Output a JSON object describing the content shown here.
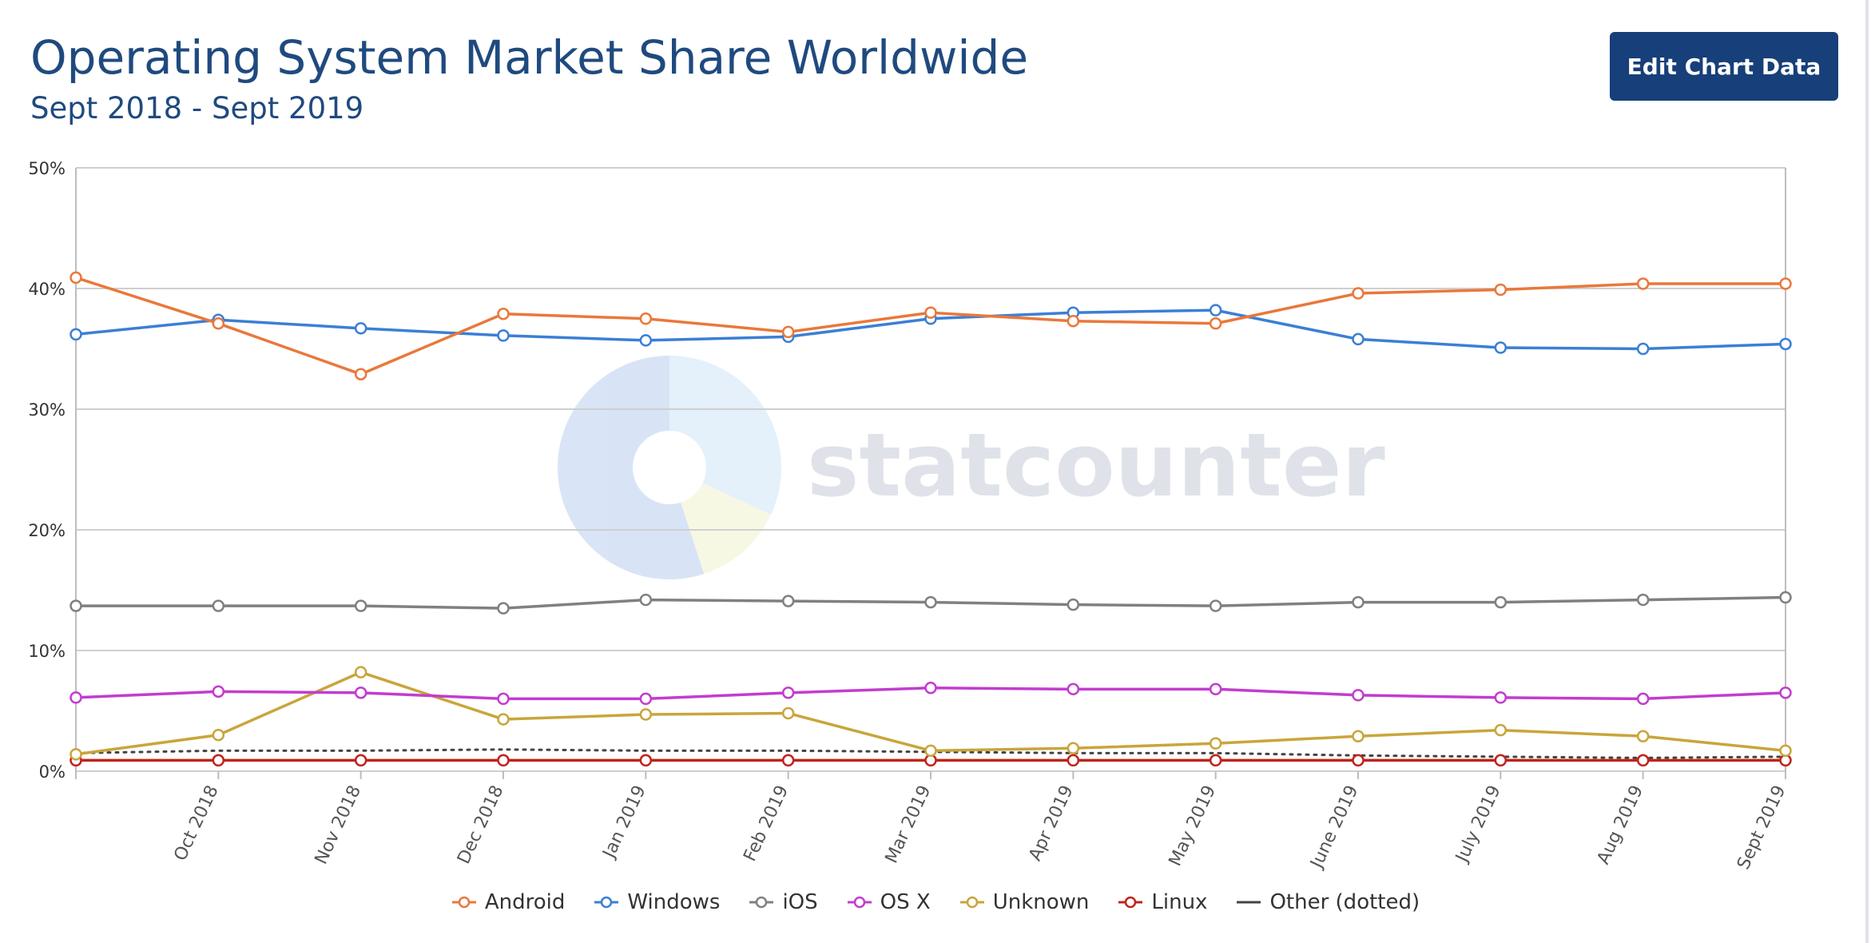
{
  "header": {
    "title": "Operating System Market Share Worldwide",
    "subtitle": "Sept 2018 - Sept 2019",
    "edit_button_label": "Edit Chart Data"
  },
  "watermark": {
    "text": "statcounter"
  },
  "chart_data": {
    "type": "line",
    "categories": [
      "Sept 2018",
      "Oct 2018",
      "Nov 2018",
      "Dec 2018",
      "Jan 2019",
      "Feb 2019",
      "Mar 2019",
      "Apr 2019",
      "May 2019",
      "June 2019",
      "July 2019",
      "Aug 2019",
      "Sept 2019"
    ],
    "x_tick_labels": [
      "",
      "Oct 2018",
      "Nov 2018",
      "Dec 2018",
      "Jan 2019",
      "Feb 2019",
      "Mar 2019",
      "Apr 2019",
      "May 2019",
      "June 2019",
      "July 2019",
      "Aug 2019",
      "Sept 2019"
    ],
    "y_ticks": [
      "0%",
      "10%",
      "20%",
      "30%",
      "40%",
      "50%"
    ],
    "ylim": [
      0,
      50
    ],
    "grid": true,
    "legend_position": "bottom-center",
    "series": [
      {
        "name": "Android",
        "color": "#e9783b",
        "style": "solid",
        "markers": true,
        "values": [
          40.9,
          37.1,
          32.9,
          37.9,
          37.5,
          36.4,
          38.0,
          37.3,
          37.1,
          39.6,
          39.9,
          40.4,
          40.4
        ]
      },
      {
        "name": "Windows",
        "color": "#3b7fd5",
        "style": "solid",
        "markers": true,
        "values": [
          36.2,
          37.4,
          36.7,
          36.1,
          35.7,
          36.0,
          37.5,
          38.0,
          38.2,
          35.8,
          35.1,
          35.0,
          35.4
        ]
      },
      {
        "name": "iOS",
        "color": "#808080",
        "style": "solid",
        "markers": true,
        "values": [
          13.7,
          13.7,
          13.7,
          13.5,
          14.2,
          14.1,
          14.0,
          13.8,
          13.7,
          14.0,
          14.0,
          14.2,
          14.4
        ]
      },
      {
        "name": "OS X",
        "color": "#c23ccf",
        "style": "solid",
        "markers": true,
        "values": [
          6.1,
          6.6,
          6.5,
          6.0,
          6.0,
          6.5,
          6.9,
          6.8,
          6.8,
          6.3,
          6.1,
          6.0,
          6.5
        ]
      },
      {
        "name": "Unknown",
        "color": "#c9a53b",
        "style": "solid",
        "markers": true,
        "values": [
          1.4,
          3.0,
          8.2,
          4.3,
          4.7,
          4.8,
          1.7,
          1.9,
          2.3,
          2.9,
          3.4,
          2.9,
          1.7
        ]
      },
      {
        "name": "Linux",
        "color": "#c0231c",
        "style": "solid",
        "markers": true,
        "values": [
          0.9,
          0.9,
          0.9,
          0.9,
          0.9,
          0.9,
          0.9,
          0.9,
          0.9,
          0.9,
          0.9,
          0.9,
          0.9
        ]
      },
      {
        "name": "Other (dotted)",
        "color": "#444444",
        "style": "dotted",
        "markers": false,
        "values": [
          1.5,
          1.7,
          1.7,
          1.8,
          1.7,
          1.7,
          1.6,
          1.5,
          1.5,
          1.3,
          1.2,
          1.1,
          1.2
        ]
      }
    ]
  }
}
